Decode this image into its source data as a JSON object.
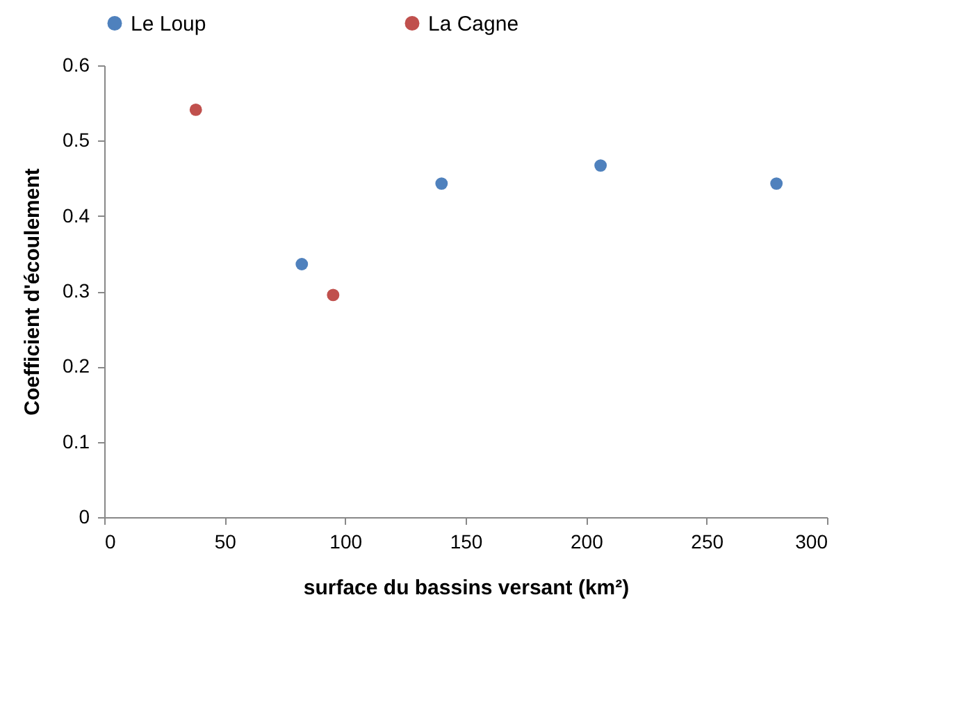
{
  "chart_data": {
    "type": "scatter",
    "xlabel": "surface du bassins versant (km²)",
    "ylabel": "Coefficient d'écoulement",
    "series": [
      {
        "name": "Le Loup",
        "color": "#4f81bd",
        "x": [
          82,
          140,
          206,
          279
        ],
        "values": [
          0.336,
          0.443,
          0.467,
          0.443
        ]
      },
      {
        "name": "La Cagne",
        "color": "#c0504d",
        "x": [
          38,
          95
        ],
        "values": [
          0.541,
          0.295
        ]
      }
    ],
    "xlim": [
      0,
      300
    ],
    "xticks": [
      0,
      50,
      100,
      150,
      200,
      250,
      300
    ],
    "ylim": [
      0,
      0.6
    ],
    "yticks": [
      0,
      0.1,
      0.2,
      0.3,
      0.4,
      0.5,
      0.6
    ],
    "grid": false,
    "legend": "top",
    "marker": "circle"
  }
}
